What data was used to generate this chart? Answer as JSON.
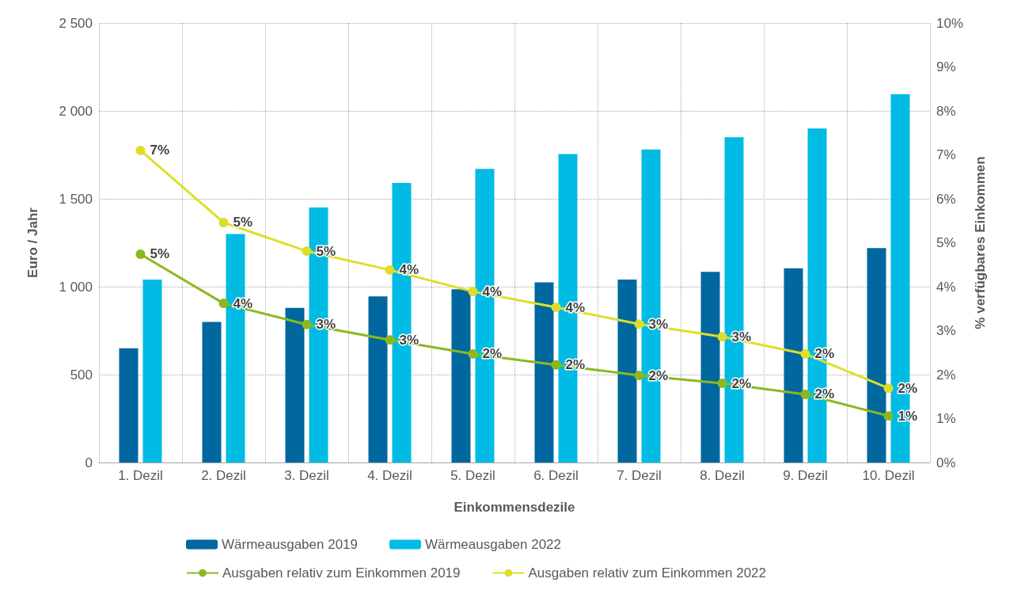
{
  "chart_data": {
    "type": "bar",
    "xlabel": "Einkommensdezile",
    "ylabel": "Euro / Jahr",
    "y2label": "% verfügbares Einkommen",
    "categories": [
      "1. Dezil",
      "2. Dezil",
      "3. Dezil",
      "4. Dezil",
      "5. Dezil",
      "6. Dezil",
      "7. Dezil",
      "8. Dezil",
      "9. Dezil",
      "10. Dezil"
    ],
    "series": [
      {
        "name": "Wärmeausgaben 2019",
        "color": "#00679f",
        "values": [
          650,
          800,
          880,
          945,
          985,
          1025,
          1040,
          1085,
          1105,
          1220
        ]
      },
      {
        "name": "Wärmeausgaben 2022",
        "color": "#00bce4",
        "values": [
          1040,
          1300,
          1450,
          1590,
          1670,
          1755,
          1780,
          1850,
          1900,
          2095
        ]
      },
      {
        "name": "Ausgaben relativ zum Einkommen 2019",
        "type": "line",
        "axis": "y2",
        "color": "#8cb81e",
        "values": [
          4.74,
          3.62,
          3.14,
          2.79,
          2.47,
          2.22,
          1.98,
          1.8,
          1.55,
          1.06
        ],
        "value_labels": [
          "5%",
          "4%",
          "3%",
          "3%",
          "2%",
          "2%",
          "2%",
          "2%",
          "2%",
          "1%"
        ]
      },
      {
        "name": "Ausgaben relativ zum Einkommen 2022",
        "type": "line",
        "axis": "y2",
        "color": "#dede2a",
        "values": [
          7.1,
          5.46,
          4.81,
          4.38,
          3.89,
          3.53,
          3.15,
          2.86,
          2.47,
          1.69
        ],
        "value_labels": [
          "7%",
          "5%",
          "5%",
          "4%",
          "4%",
          "4%",
          "3%",
          "3%",
          "2%",
          "2%"
        ]
      }
    ],
    "ylim": [
      0,
      2500
    ],
    "yticks": [
      0,
      500,
      {
        "value": 1000,
        "label": "1 000"
      },
      {
        "value": 1500,
        "label": "1 500"
      },
      {
        "value": 2000,
        "label": "2 000"
      },
      {
        "value": 2500,
        "label": "2 500"
      }
    ],
    "y2lim": [
      0,
      10
    ],
    "y2ticks": [
      {
        "value": 0,
        "label": "0%"
      },
      {
        "value": 1,
        "label": "1%"
      },
      {
        "value": 2,
        "label": "2%"
      },
      {
        "value": 3,
        "label": "3%"
      },
      {
        "value": 4,
        "label": "4%"
      },
      {
        "value": 5,
        "label": "5%"
      },
      {
        "value": 6,
        "label": "6%"
      },
      {
        "value": 7,
        "label": "7%"
      },
      {
        "value": 8,
        "label": "8%"
      },
      {
        "value": 9,
        "label": "9%"
      },
      {
        "value": 10,
        "label": "10%"
      }
    ],
    "grid": true,
    "legend": "bottom",
    "marker": "circle",
    "line_style": "solid"
  }
}
